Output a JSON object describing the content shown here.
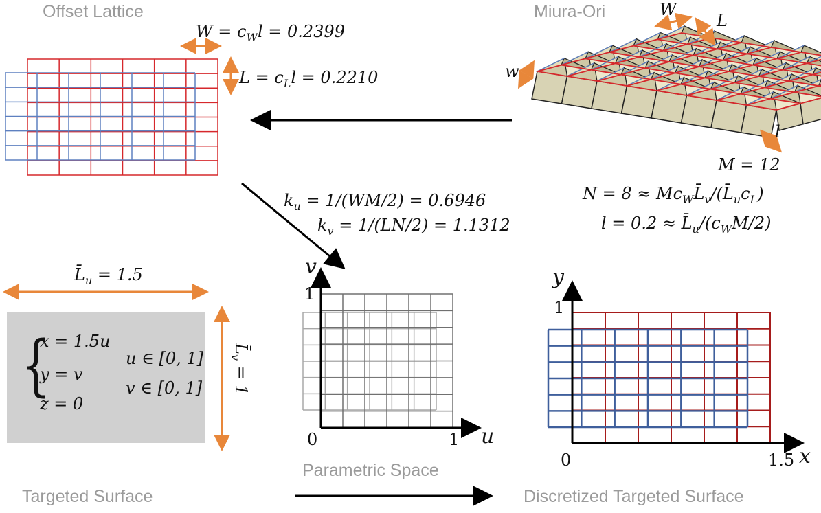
{
  "titles": {
    "offset_lattice": "Offset Lattice",
    "miura_ori": "Miura-Ori",
    "parametric_space": "Parametric Space",
    "targeted_surface": "Targeted Surface",
    "discretized_surface": "Discretized Targeted Surface"
  },
  "offset_lattice": {
    "width_eq": "W = c",
    "width_sub": "W",
    "width_rest": "l = 0.2399",
    "length_eq": "L = c",
    "length_sub": "L",
    "length_rest": "l = 0.2210"
  },
  "miura_ori": {
    "label_W": "W",
    "label_L": "L",
    "label_w": "w",
    "label_l": "l",
    "M_eq": "M = 12",
    "N_eq": "N = 8 ≈ Mc",
    "N_sub": "W",
    "N_rest": "L̄",
    "N_sub2": "v",
    "N_rest2": "/(L̄",
    "N_sub3": "u",
    "N_rest3": "c",
    "N_sub4": "L",
    "N_end": ")",
    "l_eq": "l = 0.2 ≈ L̄",
    "l_sub": "u",
    "l_rest": "/(c",
    "l_sub2": "W",
    "l_end": "M/2)"
  },
  "curvature": {
    "ku_lhs": "k",
    "ku_sub": "u",
    "ku_rhs": " = 1/(WM/2) = 0.6946",
    "kv_lhs": "k",
    "kv_sub": "v",
    "kv_rhs": " = 1/(LN/2) = 1.1312"
  },
  "targeted_surface": {
    "Lu_label": "L̄",
    "Lu_sub": "u",
    "Lu_val": " = 1.5",
    "Lv_label": "L̄",
    "Lv_sub": "v",
    "Lv_val": " = 1",
    "eq_x": "x = 1.5u",
    "eq_y": "y = v",
    "eq_z": "z = 0",
    "dom_u": "u ∈ [0, 1]",
    "dom_v": "v ∈ [0, 1]",
    "box_color": "#d0d0d0"
  },
  "parametric": {
    "axis_v": "v",
    "axis_u": "u",
    "tick_1_v": "1",
    "tick_1_u": "1",
    "tick_0": "0"
  },
  "discretized": {
    "axis_y": "y",
    "axis_x": "x",
    "tick_1_y": "1",
    "tick_15_x": "1.5",
    "tick_0": "0"
  },
  "colors": {
    "red": "#d6282c",
    "dark_red": "#a61c1c",
    "blue": "#5e80c0",
    "dark_blue": "#3f5f9c",
    "orange": "#e8873a",
    "gray_grid": "#707070",
    "light_grid": "#a8a8a8",
    "fold_fill": "#d8d3b4"
  }
}
